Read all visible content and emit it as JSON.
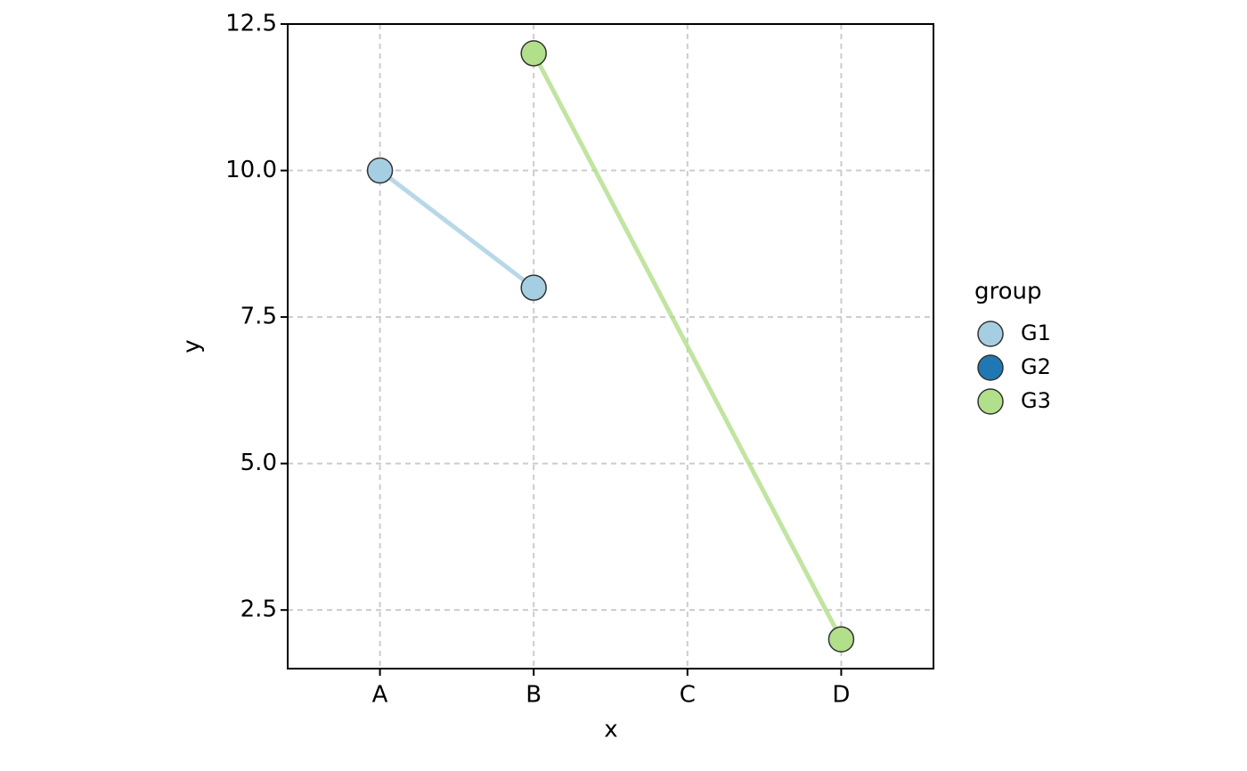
{
  "chart_data": {
    "type": "line",
    "x_label": "x",
    "y_label": "y",
    "categories": [
      "A",
      "B",
      "C",
      "D"
    ],
    "series": [
      {
        "name": "G1",
        "color": "#a6cee3",
        "x": [
          "A",
          "B"
        ],
        "values": [
          10,
          8
        ]
      },
      {
        "name": "G2",
        "color": "#1f78b4",
        "x": [],
        "values": []
      },
      {
        "name": "G3",
        "color": "#b2df8a",
        "x": [
          "B",
          "D"
        ],
        "values": [
          12,
          2
        ]
      }
    ],
    "ylim": [
      1.5,
      12.5
    ],
    "yticks": [
      2.5,
      {
        "value": 5,
        "label": "5.0"
      },
      7.5,
      {
        "value": 10,
        "label": "10.0"
      },
      12.5
    ],
    "grid": true,
    "grid_style": "dashed",
    "legend_title": "group",
    "legend_position": "right"
  }
}
